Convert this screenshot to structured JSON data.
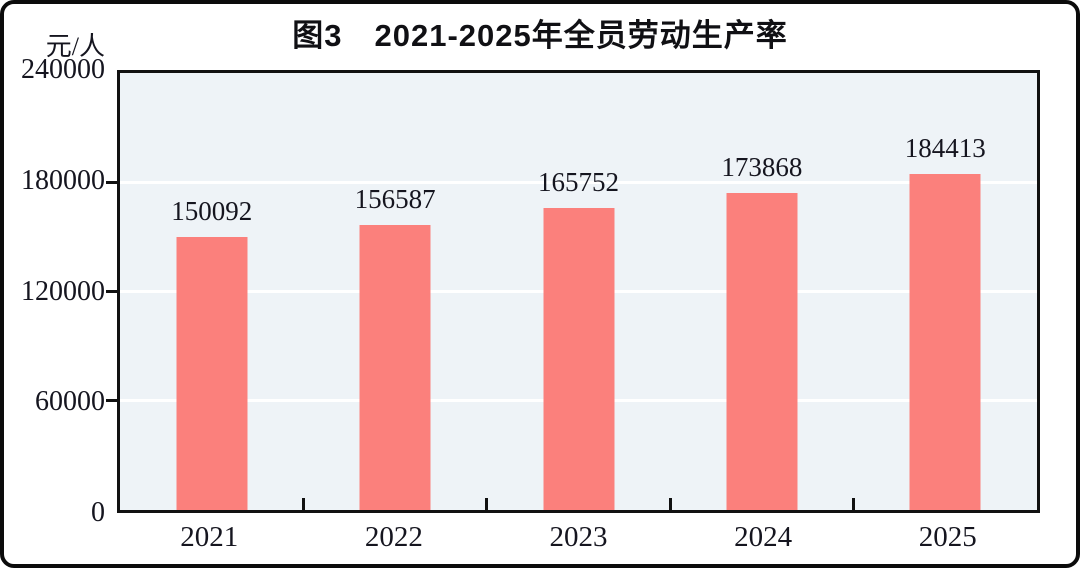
{
  "figure": {
    "title": "图3　2021-2025年全员劳动生产率",
    "unit_label": "元/人"
  },
  "chart_data": {
    "type": "bar",
    "title": "图3　2021-2025年全员劳动生产率",
    "categories": [
      "2021",
      "2022",
      "2023",
      "2024",
      "2025"
    ],
    "values": [
      150092,
      156587,
      165752,
      173868,
      184413
    ],
    "xlabel": "",
    "ylabel": "元/人",
    "ylim": [
      0,
      240000
    ],
    "yticks": [
      0,
      60000,
      120000,
      180000,
      240000
    ],
    "grid": "horizontal",
    "legend_position": "none",
    "value_labels_shown": true,
    "colors": {
      "bar_fill": "#FB807C",
      "plot_background": "#EEF3F7",
      "gridline": "#FFFFFF",
      "axis": "#111111",
      "text": "#15151F",
      "figure_border": "#0B0B0B",
      "figure_background": "#FFFFFF"
    }
  }
}
